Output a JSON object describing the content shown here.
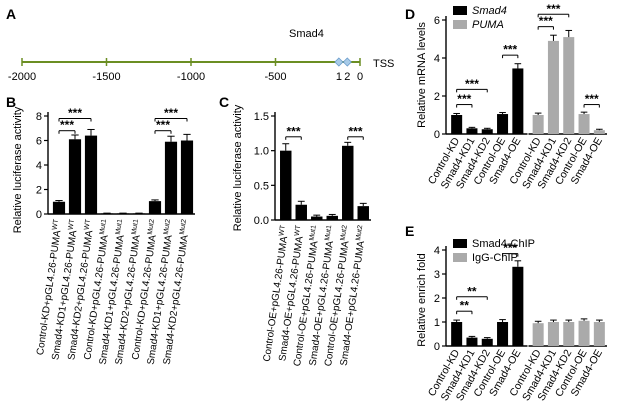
{
  "panels": {
    "A": {
      "letter": "A",
      "ticks": [
        -2000,
        -1500,
        -1000,
        -500,
        0
      ],
      "tick_labels": [
        "-2000",
        "-1500",
        "-1000",
        "-500",
        "0"
      ],
      "tss_label": "TSS",
      "site_label": "Smad4",
      "sites": [
        {
          "label": "1",
          "position": -125
        },
        {
          "label": "2",
          "position": -75
        }
      ],
      "colors": {
        "line": "#6b8e23",
        "site": "#a8cbe8"
      }
    }
  },
  "chart_data": [
    {
      "panel": "B",
      "type": "bar",
      "ylabel": "Relative luciferase activity",
      "ylim": [
        0,
        8
      ],
      "yticks": [
        0,
        2,
        4,
        6,
        8
      ],
      "categories": [
        [
          "Control-KD+pGL4.26-PUMA",
          "WT"
        ],
        [
          "Smad4-KD1+pGL4.26-PUMA",
          "WT"
        ],
        [
          "Smad4-KD2+pGL4.26-PUMA",
          "WT"
        ],
        [
          "Control-KD+pGL4.26-PUMA",
          "Mut1"
        ],
        [
          "Smad4-KD1+pGL4.26-PUMA",
          "Mut1"
        ],
        [
          "Smad4-KD2+pGL4.26-PUMA",
          "Mut1"
        ],
        [
          "Control-KD+pGL4.26-PUMA",
          "Mut2"
        ],
        [
          "Smad4-KD1+pGL4.26-PUMA",
          "Mut2"
        ],
        [
          "Smad4-KD2+pGL4.26-PUMA",
          "Mut2"
        ]
      ],
      "values": [
        1.0,
        6.1,
        6.4,
        0.05,
        0.05,
        0.05,
        1.05,
        5.9,
        6.0
      ],
      "errors": [
        0.1,
        0.35,
        0.5,
        0.02,
        0.02,
        0.02,
        0.1,
        0.45,
        0.5
      ],
      "colors": [
        "#000000",
        "#000000",
        "#000000",
        "#000000",
        "#000000",
        "#000000",
        "#000000",
        "#000000",
        "#000000"
      ],
      "significance": [
        {
          "from": 0,
          "to": 1,
          "label": "***",
          "level": 6.8
        },
        {
          "from": 0,
          "to": 2,
          "label": "***",
          "level": 7.8
        },
        {
          "from": 6,
          "to": 7,
          "label": "***",
          "level": 6.8
        },
        {
          "from": 6,
          "to": 8,
          "label": "***",
          "level": 7.8
        }
      ]
    },
    {
      "panel": "C",
      "type": "bar",
      "ylabel": "Relative luciferase activity",
      "ylim": [
        0,
        1.5
      ],
      "yticks": [
        0,
        0.5,
        1.0,
        1.5
      ],
      "ytick_labels": [
        "0.0",
        "0.5",
        "1.0",
        "1.5"
      ],
      "categories": [
        [
          "Control-OE+pGL4.26-PUMA",
          "WT"
        ],
        [
          "Smad4-OE+pGL4.26-PUMA",
          "WT"
        ],
        [
          "Control-OE+pGL4.26-PUMA",
          "Mut1"
        ],
        [
          "Smad4-OE+pGL4.26-PUMA",
          "Mut1"
        ],
        [
          "Control-OE+pGL4.26-PUMA",
          "Mut2"
        ],
        [
          "Smad4-OE+pGL4.26-PUMA",
          "Mut2"
        ]
      ],
      "values": [
        1.0,
        0.22,
        0.05,
        0.06,
        1.07,
        0.2
      ],
      "errors": [
        0.1,
        0.05,
        0.02,
        0.02,
        0.05,
        0.04
      ],
      "colors": [
        "#000000",
        "#000000",
        "#000000",
        "#000000",
        "#000000",
        "#000000"
      ],
      "significance": [
        {
          "from": 0,
          "to": 1,
          "label": "***",
          "level": 1.2
        },
        {
          "from": 4,
          "to": 5,
          "label": "***",
          "level": 1.2
        }
      ]
    },
    {
      "panel": "D",
      "type": "bar",
      "ylabel": "Relative mRNA levels",
      "ylim": [
        0,
        6
      ],
      "yticks": [
        0,
        2,
        4,
        6
      ],
      "categories": [
        "Control-KD",
        "Smad4-KD1",
        "Smad4-KD2",
        "Control-OE",
        "Smad4-OE",
        "Control-KD",
        "Smad4-KD1",
        "Smad4-KD2",
        "Control-OE",
        "Smad4-OE"
      ],
      "values": [
        1.0,
        0.3,
        0.25,
        1.05,
        3.45,
        1.0,
        4.9,
        5.1,
        1.05,
        0.2
      ],
      "errors": [
        0.08,
        0.05,
        0.05,
        0.08,
        0.25,
        0.1,
        0.3,
        0.35,
        0.1,
        0.05
      ],
      "colors": [
        "#000000",
        "#000000",
        "#000000",
        "#000000",
        "#000000",
        "#aaaaaa",
        "#aaaaaa",
        "#aaaaaa",
        "#aaaaaa",
        "#aaaaaa"
      ],
      "legend": [
        {
          "name": "Smad4",
          "color": "#000000",
          "italic": true
        },
        {
          "name": "PUMA",
          "color": "#aaaaaa",
          "italic": true
        }
      ],
      "legend_position": "top-left",
      "significance": [
        {
          "from": 0,
          "to": 1,
          "label": "***",
          "level": 1.55
        },
        {
          "from": 0,
          "to": 2,
          "label": "***",
          "level": 2.35
        },
        {
          "from": 3,
          "to": 4,
          "label": "***",
          "level": 4.15
        },
        {
          "from": 5,
          "to": 6,
          "label": "***",
          "level": 5.65
        },
        {
          "from": 5,
          "to": 7,
          "label": "***",
          "level": 6.3
        },
        {
          "from": 8,
          "to": 9,
          "label": "***",
          "level": 1.55
        }
      ]
    },
    {
      "panel": "E",
      "type": "bar",
      "ylabel": "Relative enrich fold",
      "ylim": [
        0,
        4
      ],
      "yticks": [
        0,
        1,
        2,
        3,
        4
      ],
      "categories": [
        "Control-KD",
        "Smad4-KD1",
        "Smad4-KD2",
        "Control-OE",
        "Smad4-OE",
        "Control-KD",
        "Smad4-KD1",
        "Smad4-KD2",
        "Control-OE",
        "Smad4-OE"
      ],
      "values": [
        1.0,
        0.35,
        0.3,
        1.0,
        3.3,
        0.95,
        1.0,
        1.0,
        1.05,
        1.0
      ],
      "errors": [
        0.08,
        0.05,
        0.05,
        0.1,
        0.25,
        0.08,
        0.08,
        0.08,
        0.08,
        0.08
      ],
      "colors": [
        "#000000",
        "#000000",
        "#000000",
        "#000000",
        "#000000",
        "#aaaaaa",
        "#aaaaaa",
        "#aaaaaa",
        "#aaaaaa",
        "#aaaaaa"
      ],
      "legend": [
        {
          "name": "Smad4-ChIP",
          "color": "#000000",
          "italic": false
        },
        {
          "name": "IgG-ChIP",
          "color": "#aaaaaa",
          "italic": false
        }
      ],
      "legend_position": "top-left",
      "significance": [
        {
          "from": 0,
          "to": 1,
          "label": "**",
          "level": 1.45
        },
        {
          "from": 0,
          "to": 2,
          "label": "**",
          "level": 2.05
        },
        {
          "from": 3,
          "to": 4,
          "label": "***",
          "level": 3.85
        }
      ]
    }
  ]
}
